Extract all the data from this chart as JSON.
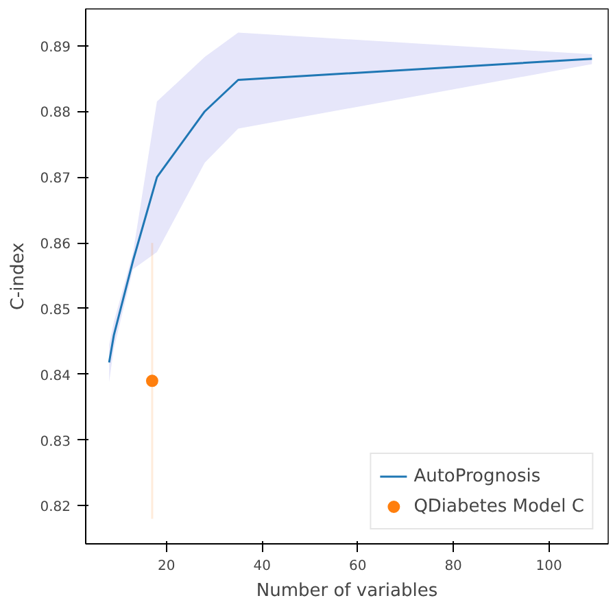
{
  "chart_data": {
    "type": "line",
    "xlabel": "Number of variables",
    "ylabel": "C-index",
    "xlim": [
      3.1,
      112.4
    ],
    "ylim": [
      0.8142,
      0.8956
    ],
    "xticks": [
      20,
      40,
      60,
      80,
      100
    ],
    "yticks": [
      0.82,
      0.83,
      0.84,
      0.85,
      0.86,
      0.87,
      0.88,
      0.89
    ],
    "grid": false,
    "legend": "bottom right",
    "series": [
      {
        "name": "AutoPrognosis",
        "color": "#1f77b4",
        "x": [
          8,
          9,
          13,
          18,
          28,
          35,
          109
        ],
        "values": [
          0.8418,
          0.846,
          0.8573,
          0.87,
          0.88,
          0.8848,
          0.888
        ],
        "lower": [
          0.8388,
          0.844,
          0.856,
          0.8586,
          0.8722,
          0.8774,
          0.8872
        ],
        "upper": [
          0.8445,
          0.848,
          0.8585,
          0.8815,
          0.8883,
          0.892,
          0.8887
        ]
      },
      {
        "name": "QDiabetes Model C",
        "type": "scatter",
        "color": "#ff7f0e",
        "x": [
          17
        ],
        "values": [
          0.839
        ],
        "errors": [
          [
            0.818,
            0.86
          ]
        ]
      }
    ]
  }
}
